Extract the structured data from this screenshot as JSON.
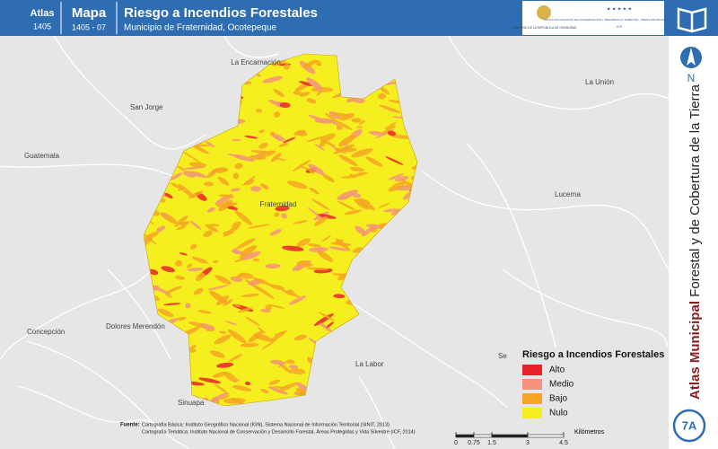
{
  "header": {
    "atlas_label": "Atlas",
    "atlas_code": "1405",
    "mapa_label": "Mapa",
    "mapa_code": "1405 - 07",
    "title": "Riesgo a Incendios Forestales",
    "subtitle": "Municipio de Fraternidad, Ocotepeque",
    "logo_left": "GOBIERNO DE LA REPÚBLICA DE HONDURAS",
    "logo_right": "INSTITUTO NACIONAL DE CONSERVACIÓN Y DESARROLLO FORESTAL, ÁREAS PROTEGIDAS Y VIDA SILVESTRE",
    "logo_right_code": "ICF"
  },
  "places": [
    "La Encarnación",
    "San Jorge",
    "La Unión",
    "Guatemala",
    "Fraternidad",
    "Lucerna",
    "Dolores Merendón",
    "Concepción",
    "La Labor",
    "Sinuapa",
    "Sen"
  ],
  "north": "N",
  "side_title": {
    "bold": "Atlas Municipal",
    "rest": "Forestal y de Cobertura de la Tierra"
  },
  "badge": "7A",
  "legend": {
    "title": "Riesgo a Incendios Forestales",
    "items": [
      {
        "label": "Alto",
        "color": "#e8232b"
      },
      {
        "label": "Medio",
        "color": "#f4937c"
      },
      {
        "label": "Bajo",
        "color": "#f5a623"
      },
      {
        "label": "Nulo",
        "color": "#f6ef1f"
      }
    ]
  },
  "scale": {
    "unit": "Kilómetros",
    "ticks": [
      0,
      0.75,
      1.5,
      3,
      4.5
    ]
  },
  "sources": {
    "label": "Fuente:",
    "lines": [
      "Cartografía Básica: Instituto Geográfico Nacional (IGN), Sistema Nacional de Información Territorial (SINIT, 2013)",
      "Cartografía Temática: Instituto Nacional de Conservación y Desarrollo Forestal, Áreas Protegidas y Vida Silvestre (ICF, 2014)"
    ]
  }
}
